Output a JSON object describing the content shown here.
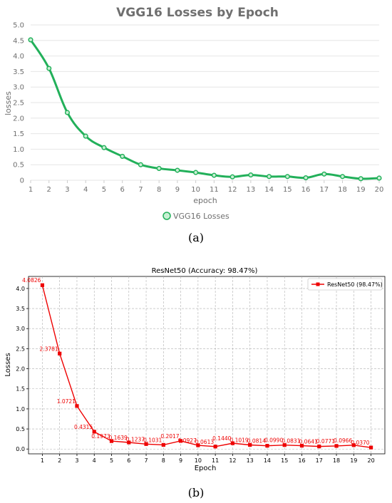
{
  "chart_data": [
    {
      "type": "line",
      "title": "VGG16 Losses by Epoch",
      "xlabel": "epoch",
      "ylabel": "losses",
      "x": [
        1,
        2,
        3,
        4,
        5,
        6,
        7,
        8,
        9,
        10,
        11,
        12,
        13,
        14,
        15,
        16,
        17,
        18,
        19,
        20
      ],
      "series": [
        {
          "name": "VGG16 Losses",
          "values": [
            4.52,
            3.6,
            2.18,
            1.42,
            1.05,
            0.77,
            0.5,
            0.38,
            0.32,
            0.25,
            0.16,
            0.11,
            0.17,
            0.12,
            0.12,
            0.08,
            0.2,
            0.12,
            0.05,
            0.07
          ]
        }
      ],
      "ylim": [
        0,
        5
      ],
      "yticks": [
        "0",
        "0.5",
        "1.0",
        "1.5",
        "2.0",
        "2.5",
        "3.0",
        "3.5",
        "4.0",
        "4.5",
        "5.0"
      ],
      "grid": "horizontal",
      "legend": "bottom-center",
      "color": "#22b05a"
    },
    {
      "type": "line",
      "title": "ResNet50 (Accuracy: 98.47%)",
      "xlabel": "Epoch",
      "ylabel": "Losses",
      "x": [
        1,
        2,
        3,
        4,
        5,
        6,
        7,
        8,
        9,
        10,
        11,
        12,
        13,
        14,
        15,
        16,
        17,
        18,
        19,
        20
      ],
      "series": [
        {
          "name": "ResNet50 (98.47%)",
          "values": [
            4.0826,
            2.3781,
            1.0721,
            0.4315,
            0.1973,
            0.1639,
            0.1237,
            0.1031,
            0.2017,
            0.0927,
            0.0613,
            0.144,
            0.1019,
            0.0814,
            0.099,
            0.0831,
            0.0641,
            0.0771,
            0.0966,
            0.037
          ],
          "labels": [
            "4.0826",
            "2.3781",
            "1.0721",
            "0.4315",
            "0.1973",
            "0.1639",
            "0.1237",
            "0.1031",
            "0.2017",
            "0.0927",
            "0.0613",
            "0.1440",
            "0.1019",
            "0.0814",
            "0.0990",
            "0.0831",
            "0.0641",
            "0.0771",
            "0.0966",
            "0.0370"
          ]
        }
      ],
      "ylim": [
        -0.12,
        4.3
      ],
      "yticks": [
        "0.0",
        "0.5",
        "1.0",
        "1.5",
        "2.0",
        "2.5",
        "3.0",
        "3.5",
        "4.0"
      ],
      "grid": "both, dashed",
      "legend": "top-right",
      "color": "#ee0000"
    }
  ],
  "captions": {
    "a": "(a)",
    "b": "(b)"
  }
}
